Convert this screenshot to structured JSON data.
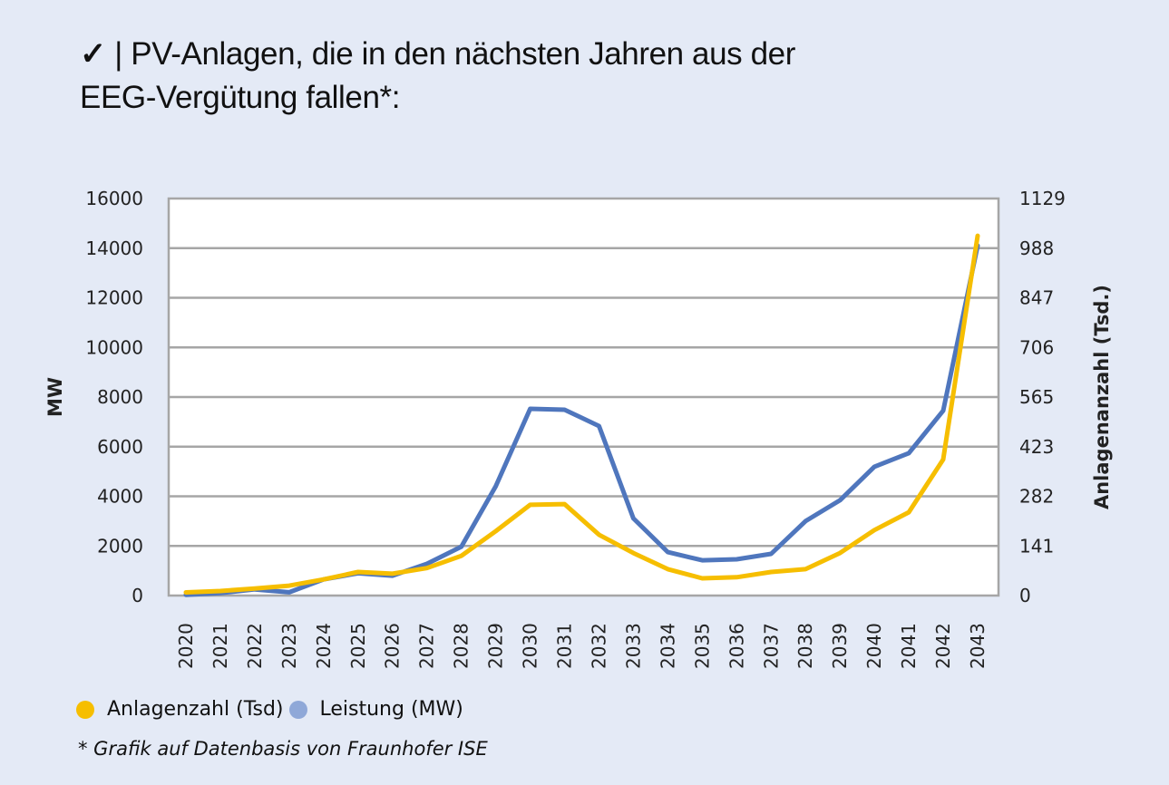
{
  "title": {
    "check_icon": "✓",
    "separator": "|",
    "line1": "PV-Anlagen, die in den nächsten Jahren aus der",
    "line2": "EEG-Vergütung fallen*:"
  },
  "footnote": "* Grafik auf Datenbasis von Fraunhofer ISE",
  "colors": {
    "background": "#e4eaf6",
    "plot_background": "#ffffff",
    "anlagenzahl": "#f6be00",
    "leistung": "#4f76bd",
    "legend_leistung_dot": "#8fa8d8",
    "grid": "#a6a6a6"
  },
  "chart_data": {
    "type": "line",
    "title": "PV-Anlagen, die in den nächsten Jahren aus der EEG-Vergütung fallen*:",
    "x": [
      "2020",
      "2021",
      "2022",
      "2023",
      "2024",
      "2025",
      "2026",
      "2027",
      "2028",
      "2029",
      "2030",
      "2031",
      "2032",
      "2033",
      "2034",
      "2035",
      "2036",
      "2037",
      "2038",
      "2039",
      "2040",
      "2041",
      "2042",
      "2043"
    ],
    "xlabel": "",
    "ylabel": "MW",
    "ylabel_right": "Anlagenanzahl (Tsd.)",
    "ylim": [
      0,
      16000
    ],
    "ylim_right": [
      0,
      1129
    ],
    "yticks": [
      "0",
      "2000",
      "4000",
      "6000",
      "8000",
      "10000",
      "12000",
      "14000",
      "16000"
    ],
    "yticks_right": [
      "0",
      "141",
      "282",
      "423",
      "565",
      "706",
      "847",
      "988",
      "1129"
    ],
    "grid": true,
    "legend_position": "bottom-left",
    "series": [
      {
        "name": "Anlagenzahl (Tsd)",
        "axis": "right",
        "values": [
          9,
          13,
          20,
          28,
          46,
          67,
          62,
          78,
          113,
          183,
          258,
          260,
          173,
          121,
          75,
          49,
          52,
          67,
          75,
          121,
          186,
          237,
          387,
          1023
        ]
      },
      {
        "name": "Leistung (MW)",
        "axis": "left",
        "values": [
          30,
          100,
          250,
          130,
          650,
          900,
          800,
          1280,
          1970,
          4400,
          7525,
          7490,
          6830,
          3110,
          1750,
          1420,
          1460,
          1680,
          3000,
          3840,
          5190,
          5740,
          7450,
          14100
        ]
      }
    ]
  },
  "legend": [
    {
      "label": "Anlagenzahl (Tsd)"
    },
    {
      "label": "Leistung (MW)"
    }
  ]
}
